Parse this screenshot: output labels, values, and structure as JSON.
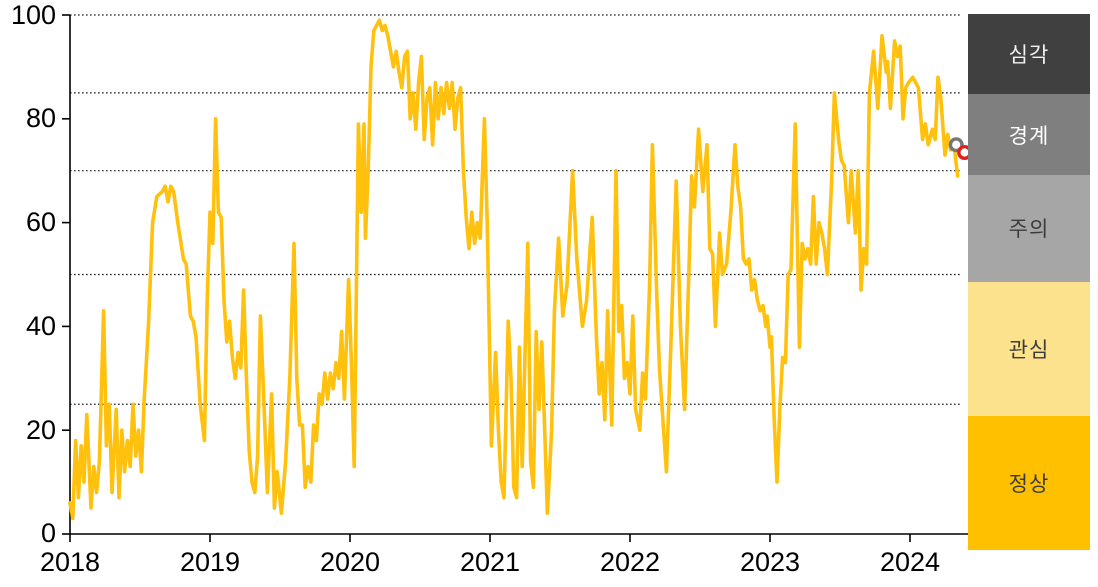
{
  "chart_data": {
    "type": "line",
    "x_axis": {
      "labels": [
        "2018",
        "2019",
        "2020",
        "2021",
        "2022",
        "2023",
        "2024"
      ],
      "start": 2018,
      "end": 2024.41
    },
    "y_axis": {
      "ticks": [
        0,
        20,
        40,
        60,
        80,
        100
      ],
      "min": 0,
      "max": 100
    },
    "gridline_values": [
      100,
      85,
      70,
      50,
      25
    ],
    "grid_on": true,
    "legend_position": "right-bands",
    "bands": [
      {
        "label": "심각",
        "range": [
          85,
          100
        ],
        "color": "#404040",
        "text_color": "#F2F2F2"
      },
      {
        "label": "경계",
        "range": [
          70,
          85
        ],
        "color": "#7F7F7F",
        "text_color": "#FFFFFF"
      },
      {
        "label": "주의",
        "range": [
          50,
          70
        ],
        "color": "#A6A6A6",
        "text_color": "#3B3B3B"
      },
      {
        "label": "관심",
        "range": [
          25,
          50
        ],
        "color": "#FCE28C",
        "text_color": "#3B3B3B"
      },
      {
        "label": "정상",
        "range": [
          0,
          25
        ],
        "color": "#FFC000",
        "text_color": "#3B3B3B"
      }
    ],
    "series": [
      {
        "name": "index",
        "color": "#FFC10E",
        "points": [
          [
            2018.0,
            6
          ],
          [
            2018.02,
            3
          ],
          [
            2018.04,
            18
          ],
          [
            2018.06,
            7
          ],
          [
            2018.08,
            17
          ],
          [
            2018.1,
            10
          ],
          [
            2018.12,
            23
          ],
          [
            2018.15,
            5
          ],
          [
            2018.17,
            13
          ],
          [
            2018.19,
            8
          ],
          [
            2018.21,
            14
          ],
          [
            2018.24,
            43
          ],
          [
            2018.26,
            17
          ],
          [
            2018.28,
            25
          ],
          [
            2018.3,
            8
          ],
          [
            2018.33,
            24
          ],
          [
            2018.35,
            7
          ],
          [
            2018.37,
            20
          ],
          [
            2018.39,
            12
          ],
          [
            2018.41,
            18
          ],
          [
            2018.43,
            13
          ],
          [
            2018.45,
            25
          ],
          [
            2018.47,
            15
          ],
          [
            2018.49,
            20
          ],
          [
            2018.51,
            12
          ],
          [
            2018.53,
            26
          ],
          [
            2018.56,
            40
          ],
          [
            2018.59,
            60
          ],
          [
            2018.62,
            65
          ],
          [
            2018.66,
            66
          ],
          [
            2018.68,
            67
          ],
          [
            2018.7,
            64
          ],
          [
            2018.72,
            67
          ],
          [
            2018.74,
            66
          ],
          [
            2018.77,
            60
          ],
          [
            2018.81,
            53
          ],
          [
            2018.83,
            52
          ],
          [
            2018.86,
            42
          ],
          [
            2018.88,
            41
          ],
          [
            2018.9,
            38
          ],
          [
            2018.93,
            25
          ],
          [
            2018.96,
            18
          ],
          [
            2018.98,
            45
          ],
          [
            2019.0,
            62
          ],
          [
            2019.02,
            56
          ],
          [
            2019.04,
            80
          ],
          [
            2019.06,
            62
          ],
          [
            2019.08,
            61
          ],
          [
            2019.1,
            45
          ],
          [
            2019.12,
            37
          ],
          [
            2019.14,
            41
          ],
          [
            2019.16,
            34
          ],
          [
            2019.18,
            30
          ],
          [
            2019.2,
            35
          ],
          [
            2019.22,
            32
          ],
          [
            2019.24,
            47
          ],
          [
            2019.26,
            30
          ],
          [
            2019.28,
            16
          ],
          [
            2019.3,
            10
          ],
          [
            2019.32,
            8
          ],
          [
            2019.34,
            15
          ],
          [
            2019.36,
            42
          ],
          [
            2019.39,
            22
          ],
          [
            2019.41,
            8
          ],
          [
            2019.44,
            27
          ],
          [
            2019.46,
            5
          ],
          [
            2019.48,
            12
          ],
          [
            2019.51,
            4
          ],
          [
            2019.54,
            14
          ],
          [
            2019.57,
            30
          ],
          [
            2019.6,
            56
          ],
          [
            2019.62,
            30
          ],
          [
            2019.64,
            21
          ],
          [
            2019.66,
            21
          ],
          [
            2019.68,
            9
          ],
          [
            2019.7,
            13
          ],
          [
            2019.72,
            10
          ],
          [
            2019.74,
            21
          ],
          [
            2019.76,
            18
          ],
          [
            2019.78,
            27
          ],
          [
            2019.8,
            25
          ],
          [
            2019.82,
            31
          ],
          [
            2019.84,
            26
          ],
          [
            2019.86,
            31
          ],
          [
            2019.88,
            28
          ],
          [
            2019.9,
            33
          ],
          [
            2019.92,
            30
          ],
          [
            2019.94,
            39
          ],
          [
            2019.96,
            26
          ],
          [
            2019.99,
            49
          ],
          [
            2020.01,
            33
          ],
          [
            2020.03,
            13
          ],
          [
            2020.06,
            79
          ],
          [
            2020.08,
            62
          ],
          [
            2020.1,
            79
          ],
          [
            2020.11,
            57
          ],
          [
            2020.13,
            70
          ],
          [
            2020.15,
            90
          ],
          [
            2020.17,
            97
          ],
          [
            2020.19,
            98
          ],
          [
            2020.21,
            99
          ],
          [
            2020.23,
            97
          ],
          [
            2020.25,
            98
          ],
          [
            2020.27,
            96
          ],
          [
            2020.29,
            93
          ],
          [
            2020.31,
            90
          ],
          [
            2020.33,
            93
          ],
          [
            2020.35,
            89
          ],
          [
            2020.37,
            86
          ],
          [
            2020.39,
            92
          ],
          [
            2020.41,
            93
          ],
          [
            2020.43,
            80
          ],
          [
            2020.45,
            85
          ],
          [
            2020.47,
            78
          ],
          [
            2020.49,
            87
          ],
          [
            2020.51,
            92
          ],
          [
            2020.53,
            76
          ],
          [
            2020.55,
            84
          ],
          [
            2020.57,
            86
          ],
          [
            2020.59,
            75
          ],
          [
            2020.61,
            87
          ],
          [
            2020.63,
            80
          ],
          [
            2020.65,
            86
          ],
          [
            2020.67,
            81
          ],
          [
            2020.69,
            87
          ],
          [
            2020.71,
            82
          ],
          [
            2020.73,
            87
          ],
          [
            2020.75,
            78
          ],
          [
            2020.77,
            84
          ],
          [
            2020.79,
            86
          ],
          [
            2020.81,
            70
          ],
          [
            2020.83,
            61
          ],
          [
            2020.85,
            55
          ],
          [
            2020.87,
            62
          ],
          [
            2020.89,
            56
          ],
          [
            2020.91,
            60
          ],
          [
            2020.93,
            57
          ],
          [
            2020.96,
            80
          ],
          [
            2020.98,
            60
          ],
          [
            2021.01,
            17
          ],
          [
            2021.04,
            35
          ],
          [
            2021.06,
            20
          ],
          [
            2021.08,
            10
          ],
          [
            2021.1,
            7
          ],
          [
            2021.13,
            41
          ],
          [
            2021.15,
            30
          ],
          [
            2021.17,
            9
          ],
          [
            2021.19,
            7
          ],
          [
            2021.21,
            36
          ],
          [
            2021.23,
            13
          ],
          [
            2021.27,
            56
          ],
          [
            2021.29,
            14
          ],
          [
            2021.31,
            9
          ],
          [
            2021.33,
            39
          ],
          [
            2021.35,
            24
          ],
          [
            2021.37,
            37
          ],
          [
            2021.41,
            4
          ],
          [
            2021.44,
            20
          ],
          [
            2021.46,
            43
          ],
          [
            2021.49,
            57
          ],
          [
            2021.52,
            42
          ],
          [
            2021.55,
            48
          ],
          [
            2021.59,
            70
          ],
          [
            2021.62,
            53
          ],
          [
            2021.66,
            40
          ],
          [
            2021.69,
            45
          ],
          [
            2021.73,
            61
          ],
          [
            2021.76,
            38
          ],
          [
            2021.78,
            27
          ],
          [
            2021.8,
            33
          ],
          [
            2021.82,
            22
          ],
          [
            2021.84,
            43
          ],
          [
            2021.87,
            21
          ],
          [
            2021.9,
            70
          ],
          [
            2021.92,
            39
          ],
          [
            2021.94,
            44
          ],
          [
            2021.96,
            30
          ],
          [
            2021.98,
            33
          ],
          [
            2022.0,
            27
          ],
          [
            2022.02,
            42
          ],
          [
            2022.04,
            24
          ],
          [
            2022.07,
            20
          ],
          [
            2022.09,
            31
          ],
          [
            2022.11,
            26
          ],
          [
            2022.14,
            48
          ],
          [
            2022.16,
            75
          ],
          [
            2022.19,
            47
          ],
          [
            2022.21,
            32
          ],
          [
            2022.26,
            12
          ],
          [
            2022.29,
            35
          ],
          [
            2022.33,
            68
          ],
          [
            2022.36,
            40
          ],
          [
            2022.39,
            24
          ],
          [
            2022.42,
            50
          ],
          [
            2022.44,
            69
          ],
          [
            2022.46,
            63
          ],
          [
            2022.49,
            78
          ],
          [
            2022.52,
            66
          ],
          [
            2022.55,
            75
          ],
          [
            2022.57,
            55
          ],
          [
            2022.59,
            54
          ],
          [
            2022.61,
            40
          ],
          [
            2022.64,
            58
          ],
          [
            2022.66,
            50
          ],
          [
            2022.69,
            52
          ],
          [
            2022.72,
            62
          ],
          [
            2022.75,
            75
          ],
          [
            2022.77,
            67
          ],
          [
            2022.79,
            63
          ],
          [
            2022.81,
            53
          ],
          [
            2022.83,
            52
          ],
          [
            2022.85,
            53
          ],
          [
            2022.87,
            47
          ],
          [
            2022.89,
            49
          ],
          [
            2022.91,
            45
          ],
          [
            2022.93,
            43
          ],
          [
            2022.95,
            44
          ],
          [
            2022.97,
            40
          ],
          [
            2022.98,
            42
          ],
          [
            2023.0,
            36
          ],
          [
            2023.01,
            38
          ],
          [
            2023.03,
            22
          ],
          [
            2023.05,
            10
          ],
          [
            2023.07,
            24
          ],
          [
            2023.09,
            34
          ],
          [
            2023.11,
            33
          ],
          [
            2023.13,
            50
          ],
          [
            2023.15,
            51
          ],
          [
            2023.18,
            79
          ],
          [
            2023.21,
            36
          ],
          [
            2023.23,
            56
          ],
          [
            2023.25,
            53
          ],
          [
            2023.27,
            55
          ],
          [
            2023.29,
            52
          ],
          [
            2023.31,
            65
          ],
          [
            2023.33,
            52
          ],
          [
            2023.35,
            60
          ],
          [
            2023.37,
            58
          ],
          [
            2023.39,
            55
          ],
          [
            2023.41,
            50
          ],
          [
            2023.44,
            68
          ],
          [
            2023.46,
            85
          ],
          [
            2023.49,
            76
          ],
          [
            2023.51,
            72
          ],
          [
            2023.53,
            71
          ],
          [
            2023.56,
            60
          ],
          [
            2023.58,
            70
          ],
          [
            2023.61,
            58
          ],
          [
            2023.63,
            70
          ],
          [
            2023.65,
            47
          ],
          [
            2023.67,
            55
          ],
          [
            2023.69,
            52
          ],
          [
            2023.71,
            85
          ],
          [
            2023.74,
            93
          ],
          [
            2023.77,
            82
          ],
          [
            2023.8,
            96
          ],
          [
            2023.83,
            89
          ],
          [
            2023.84,
            91
          ],
          [
            2023.86,
            82
          ],
          [
            2023.89,
            95
          ],
          [
            2023.91,
            92
          ],
          [
            2023.93,
            94
          ],
          [
            2023.95,
            80
          ],
          [
            2023.97,
            86
          ],
          [
            2023.99,
            87
          ],
          [
            2024.02,
            88
          ],
          [
            2024.04,
            87
          ],
          [
            2024.06,
            86
          ],
          [
            2024.09,
            76
          ],
          [
            2024.11,
            79
          ],
          [
            2024.13,
            75
          ],
          [
            2024.16,
            78
          ],
          [
            2024.18,
            76
          ],
          [
            2024.2,
            88
          ],
          [
            2024.22,
            84
          ],
          [
            2024.25,
            73
          ],
          [
            2024.27,
            77
          ],
          [
            2024.29,
            74
          ],
          [
            2024.31,
            76
          ],
          [
            2024.34,
            69
          ]
        ]
      }
    ],
    "markers": [
      {
        "name": "previous-point",
        "shape": "open-circle",
        "color": "#767676",
        "t": 2024.33,
        "value": 75
      },
      {
        "name": "latest-point",
        "shape": "open-circle",
        "color": "#E02121",
        "t": 2024.39,
        "value": 73.5
      }
    ]
  }
}
